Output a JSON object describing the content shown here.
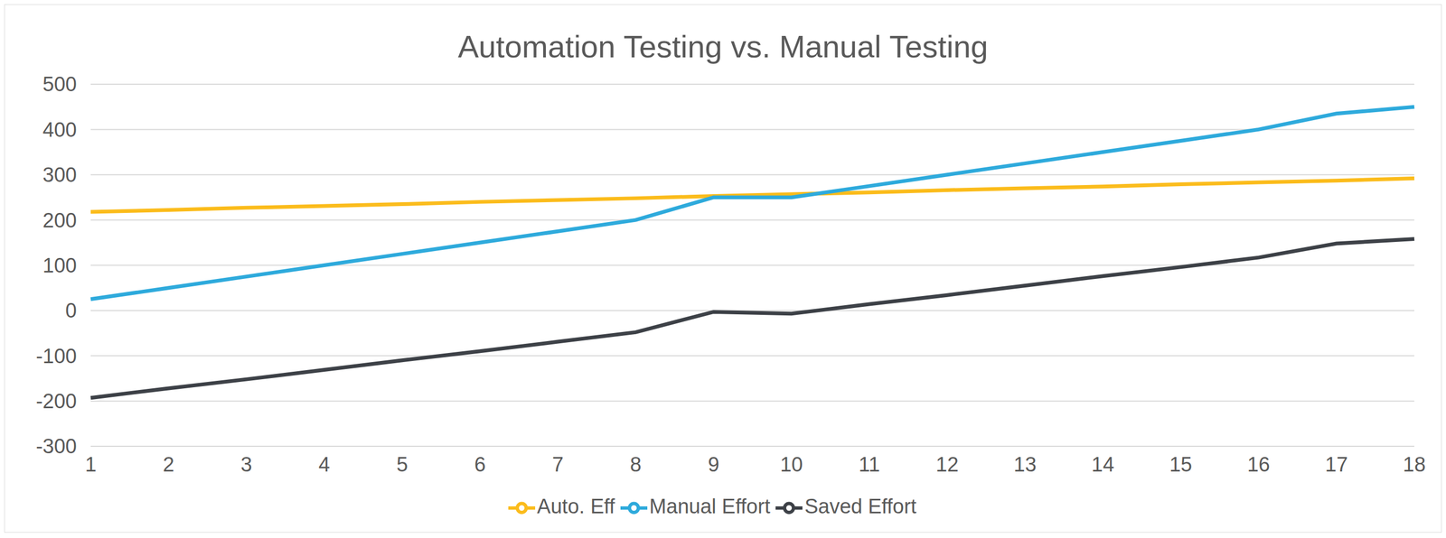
{
  "chart_data": {
    "type": "line",
    "title": "Automation Testing vs. Manual Testing",
    "x": [
      1,
      2,
      3,
      4,
      5,
      6,
      7,
      8,
      9,
      10,
      11,
      12,
      13,
      14,
      15,
      16,
      17,
      18
    ],
    "series": [
      {
        "name": "Auto. Eff",
        "color": "#fbbc1c",
        "values": [
          218,
          222,
          227,
          231,
          235,
          240,
          244,
          248,
          253,
          257,
          261,
          266,
          270,
          274,
          279,
          283,
          287,
          292
        ]
      },
      {
        "name": "Manual Effort",
        "color": "#2eaadc",
        "values": [
          25,
          50,
          75,
          100,
          125,
          150,
          175,
          200,
          250,
          250,
          275,
          300,
          325,
          350,
          375,
          400,
          435,
          450
        ]
      },
      {
        "name": "Saved Effort",
        "color": "#3d4147",
        "values": [
          -193,
          -172,
          -152,
          -131,
          -110,
          -90,
          -69,
          -48,
          -3,
          -7,
          14,
          34,
          55,
          76,
          96,
          117,
          148,
          158
        ]
      }
    ],
    "ylim": [
      -300,
      500
    ],
    "yticks": [
      -300,
      -200,
      -100,
      0,
      100,
      200,
      300,
      400,
      500
    ],
    "grid": true,
    "legend": "bottom"
  }
}
